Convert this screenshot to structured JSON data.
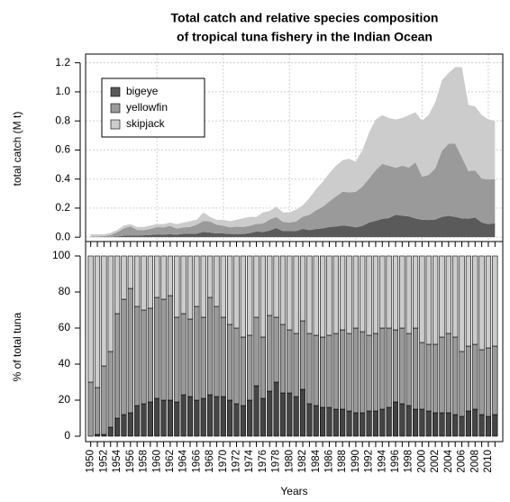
{
  "chart_data": [
    {
      "type": "area",
      "stacked": true,
      "title": [
        "Total catch and relative species composition",
        "of tropical tuna fishery in the Indian Ocean"
      ],
      "y_label": "total catch (M t)",
      "ylim": [
        -0.03,
        1.26
      ],
      "yticks": [
        {
          "value": 0,
          "label": "0.0"
        },
        0.2,
        0.4,
        0.6,
        0.8,
        {
          "value": 1,
          "label": "1.0"
        },
        1.2
      ],
      "grid": true,
      "legend": "top-left",
      "series": [
        {
          "name": "bigeye",
          "color": "#5a5a5a",
          "values": [
            0,
            0,
            0,
            0.002,
            0.005,
            0.01,
            0.012,
            0.012,
            0.013,
            0.015,
            0.019,
            0.018,
            0.02,
            0.017,
            0.023,
            0.024,
            0.024,
            0.036,
            0.032,
            0.026,
            0.026,
            0.022,
            0.022,
            0.022,
            0.028,
            0.039,
            0.036,
            0.045,
            0.063,
            0.041,
            0.041,
            0.042,
            0.057,
            0.049,
            0.056,
            0.061,
            0.07,
            0.074,
            0.08,
            0.076,
            0.068,
            0.078,
            0.101,
            0.113,
            0.126,
            0.131,
            0.154,
            0.148,
            0.143,
            0.129,
            0.12,
            0.118,
            0.121,
            0.14,
            0.147,
            0.14,
            0.129,
            0.127,
            0.135,
            0.101,
            0.089,
            0.096
          ]
        },
        {
          "name": "yellowfin",
          "color": "#9a9a9a",
          "values": [
            0.006,
            0.005,
            0.008,
            0.012,
            0.029,
            0.051,
            0.062,
            0.038,
            0.036,
            0.042,
            0.05,
            0.05,
            0.058,
            0.042,
            0.045,
            0.047,
            0.062,
            0.076,
            0.076,
            0.06,
            0.053,
            0.046,
            0.05,
            0.049,
            0.05,
            0.053,
            0.058,
            0.076,
            0.076,
            0.065,
            0.06,
            0.066,
            0.084,
            0.105,
            0.129,
            0.148,
            0.176,
            0.206,
            0.233,
            0.232,
            0.244,
            0.27,
            0.302,
            0.348,
            0.378,
            0.361,
            0.324,
            0.344,
            0.336,
            0.387,
            0.296,
            0.311,
            0.353,
            0.454,
            0.497,
            0.503,
            0.421,
            0.328,
            0.324,
            0.302,
            0.308,
            0.304
          ]
        },
        {
          "name": "skipjack",
          "color": "#cccccc",
          "values": [
            0.014,
            0.015,
            0.012,
            0.016,
            0.016,
            0.019,
            0.016,
            0.02,
            0.021,
            0.023,
            0.021,
            0.022,
            0.022,
            0.031,
            0.032,
            0.039,
            0.034,
            0.058,
            0.032,
            0.034,
            0.041,
            0.042,
            0.048,
            0.059,
            0.062,
            0.048,
            0.077,
            0.059,
            0.071,
            0.065,
            0.07,
            0.082,
            0.079,
            0.116,
            0.145,
            0.171,
            0.194,
            0.211,
            0.217,
            0.232,
            0.208,
            0.252,
            0.317,
            0.348,
            0.336,
            0.328,
            0.332,
            0.328,
            0.361,
            0.344,
            0.384,
            0.412,
            0.456,
            0.486,
            0.486,
            0.527,
            0.62,
            0.455,
            0.441,
            0.437,
            0.413,
            0.4
          ]
        }
      ]
    },
    {
      "type": "bar",
      "stacked": true,
      "y_label": "% of total tuna",
      "x_label": "Years",
      "ylim": [
        -3,
        108
      ],
      "yticks": [
        0,
        20,
        40,
        60,
        80,
        100
      ],
      "grid": false,
      "categories": [
        "1950",
        null,
        "1952",
        null,
        "1954",
        null,
        "1956",
        null,
        "1958",
        null,
        "1960",
        null,
        "1962",
        null,
        "1964",
        null,
        "1966",
        null,
        "1968",
        null,
        "1970",
        null,
        "1972",
        null,
        "1974",
        null,
        "1976",
        null,
        "1978",
        null,
        "1980",
        null,
        "1982",
        null,
        "1984",
        null,
        "1986",
        null,
        "1988",
        null,
        "1990",
        null,
        "1992",
        null,
        "1994",
        null,
        "1996",
        null,
        "1998",
        null,
        "2000",
        null,
        "2002",
        null,
        "2004",
        null,
        "2006",
        null,
        "2008",
        null,
        "2010",
        null
      ],
      "series": [
        {
          "name": "bigeye",
          "color": "#454545",
          "values": [
            0,
            1,
            1,
            5,
            10,
            12,
            13,
            17,
            18,
            19,
            21,
            20,
            20,
            19,
            23,
            22,
            20,
            21,
            23,
            22,
            22,
            20,
            18,
            17,
            20,
            28,
            21,
            25,
            30,
            24,
            24,
            22,
            26,
            18,
            17,
            16,
            16,
            15,
            15,
            14,
            13,
            13,
            14,
            14,
            15,
            16,
            19,
            18,
            17,
            15,
            15,
            14,
            13,
            13,
            13,
            12,
            11,
            14,
            15,
            12,
            11,
            12
          ]
        },
        {
          "name": "yellowfin",
          "color": "#9a9a9a",
          "values": [
            30,
            26,
            38,
            42,
            58,
            64,
            69,
            55,
            52,
            52,
            56,
            56,
            58,
            47,
            45,
            43,
            52,
            45,
            54,
            50,
            44,
            42,
            42,
            38,
            36,
            38,
            34,
            42,
            36,
            38,
            35,
            35,
            38,
            39,
            39,
            39,
            40,
            42,
            44,
            43,
            47,
            45,
            42,
            43,
            45,
            44,
            40,
            42,
            40,
            45,
            37,
            37,
            38,
            42,
            44,
            43,
            36,
            36,
            36,
            36,
            38,
            38
          ]
        },
        {
          "name": "skipjack",
          "color": "#cccccc",
          "values": [
            70,
            73,
            61,
            53,
            32,
            24,
            18,
            28,
            30,
            29,
            23,
            24,
            22,
            34,
            32,
            35,
            28,
            34,
            23,
            28,
            34,
            38,
            40,
            45,
            44,
            34,
            45,
            33,
            34,
            38,
            41,
            43,
            36,
            43,
            44,
            45,
            44,
            43,
            41,
            43,
            40,
            42,
            44,
            43,
            40,
            40,
            41,
            40,
            43,
            40,
            48,
            49,
            49,
            45,
            43,
            45,
            53,
            50,
            49,
            52,
            51,
            50
          ]
        }
      ]
    }
  ]
}
